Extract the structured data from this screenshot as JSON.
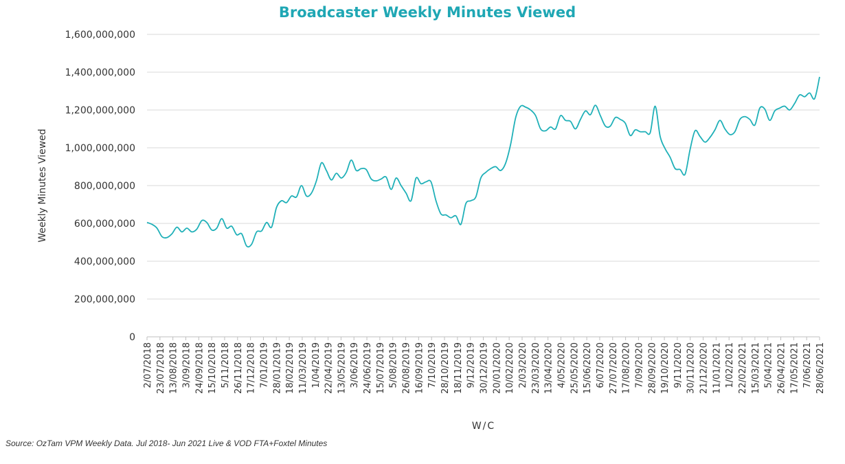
{
  "chart_data": {
    "type": "line",
    "title": "Broadcaster Weekly Minutes Viewed",
    "xlabel": "W/C",
    "ylabel": "Weekly Minutes Viewed",
    "ylim": [
      0,
      1600000000
    ],
    "grid": "horizontal",
    "legend": "none",
    "line_color": "#1fb0b8",
    "title_color": "#1fa7b4",
    "y_tick_labels": [
      "0",
      "200,000,000",
      "400,000,000",
      "600,000,000",
      "800,000,000",
      "1,000,000,000",
      "1,200,000,000",
      "1,400,000,000",
      "1,600,000,000"
    ],
    "x_tick_labels": [
      "2/07/2018",
      "23/07/2018",
      "13/08/2018",
      "3/09/2018",
      "24/09/2018",
      "15/10/2018",
      "5/11/2018",
      "26/11/2018",
      "17/12/2018",
      "7/01/2019",
      "28/01/2019",
      "18/02/2019",
      "11/03/2019",
      "1/04/2019",
      "22/04/2019",
      "13/05/2019",
      "3/06/2019",
      "24/06/2019",
      "15/07/2019",
      "5/08/2019",
      "26/08/2019",
      "16/09/2019",
      "7/10/2019",
      "28/10/2019",
      "18/11/2019",
      "9/12/2019",
      "30/12/2019",
      "20/01/2020",
      "10/02/2020",
      "2/03/2020",
      "23/03/2020",
      "13/04/2020",
      "4/05/2020",
      "25/05/2020",
      "15/06/2020",
      "6/07/2020",
      "27/07/2020",
      "17/08/2020",
      "7/09/2020",
      "28/09/2020",
      "19/10/2020",
      "9/11/2020",
      "30/11/2020",
      "21/12/2020",
      "11/01/2021",
      "1/02/2021",
      "22/02/2021",
      "15/03/2021",
      "5/04/2021",
      "26/04/2021",
      "17/05/2021",
      "7/06/2021",
      "28/06/2021"
    ],
    "series": [
      {
        "values": [
          605000000,
          595000000,
          575000000,
          530000000,
          525000000,
          545000000,
          580000000,
          555000000,
          575000000,
          555000000,
          570000000,
          615000000,
          605000000,
          565000000,
          575000000,
          625000000,
          575000000,
          585000000,
          540000000,
          545000000,
          480000000,
          490000000,
          555000000,
          560000000,
          605000000,
          580000000,
          685000000,
          720000000,
          710000000,
          745000000,
          740000000,
          800000000,
          745000000,
          760000000,
          825000000,
          920000000,
          880000000,
          830000000,
          865000000,
          840000000,
          870000000,
          935000000,
          880000000,
          890000000,
          885000000,
          835000000,
          825000000,
          835000000,
          845000000,
          780000000,
          840000000,
          800000000,
          760000000,
          720000000,
          840000000,
          810000000,
          820000000,
          820000000,
          720000000,
          650000000,
          645000000,
          630000000,
          640000000,
          595000000,
          705000000,
          720000000,
          740000000,
          840000000,
          870000000,
          890000000,
          900000000,
          880000000,
          920000000,
          1020000000,
          1160000000,
          1220000000,
          1215000000,
          1200000000,
          1170000000,
          1100000000,
          1090000000,
          1110000000,
          1100000000,
          1170000000,
          1145000000,
          1140000000,
          1100000000,
          1150000000,
          1195000000,
          1175000000,
          1225000000,
          1170000000,
          1115000000,
          1115000000,
          1160000000,
          1150000000,
          1130000000,
          1065000000,
          1095000000,
          1085000000,
          1085000000,
          1080000000,
          1220000000,
          1060000000,
          995000000,
          950000000,
          890000000,
          885000000,
          860000000,
          990000000,
          1090000000,
          1060000000,
          1030000000,
          1055000000,
          1095000000,
          1145000000,
          1100000000,
          1070000000,
          1085000000,
          1150000000,
          1165000000,
          1150000000,
          1120000000,
          1210000000,
          1205000000,
          1145000000,
          1195000000,
          1210000000,
          1220000000,
          1200000000,
          1235000000,
          1280000000,
          1270000000,
          1290000000,
          1260000000,
          1375000000
        ]
      }
    ]
  },
  "source_note": "Source: OzTam VPM  Weekly Data. Jul 2018- Jun 2021 Live & VOD FTA+Foxtel Minutes"
}
